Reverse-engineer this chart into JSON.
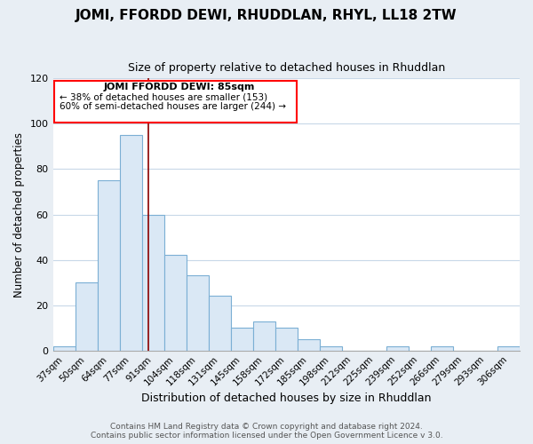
{
  "title": "JOMI, FFORDD DEWI, RHUDDLAN, RHYL, LL18 2TW",
  "subtitle": "Size of property relative to detached houses in Rhuddlan",
  "xlabel": "Distribution of detached houses by size in Rhuddlan",
  "ylabel": "Number of detached properties",
  "categories": [
    "37sqm",
    "50sqm",
    "64sqm",
    "77sqm",
    "91sqm",
    "104sqm",
    "118sqm",
    "131sqm",
    "145sqm",
    "158sqm",
    "172sqm",
    "185sqm",
    "198sqm",
    "212sqm",
    "225sqm",
    "239sqm",
    "252sqm",
    "266sqm",
    "279sqm",
    "293sqm",
    "306sqm"
  ],
  "values": [
    2,
    30,
    75,
    95,
    60,
    42,
    33,
    24,
    10,
    13,
    10,
    5,
    2,
    0,
    0,
    2,
    0,
    2,
    0,
    0,
    2
  ],
  "bar_fill": "#dae8f5",
  "bar_edge": "#7bafd4",
  "annotation_title": "JOMI FFORDD DEWI: 85sqm",
  "annotation_line1": "← 38% of detached houses are smaller (153)",
  "annotation_line2": "60% of semi-detached houses are larger (244) →",
  "vline_x": 3.8,
  "ylim": [
    0,
    120
  ],
  "yticks": [
    0,
    20,
    40,
    60,
    80,
    100,
    120
  ],
  "footer1": "Contains HM Land Registry data © Crown copyright and database right 2024.",
  "footer2": "Contains public sector information licensed under the Open Government Licence v 3.0.",
  "background_color": "#e8eef4",
  "plot_bg_color": "#ffffff",
  "grid_color": "#c8d8e8",
  "title_fontsize": 11,
  "subtitle_fontsize": 9
}
